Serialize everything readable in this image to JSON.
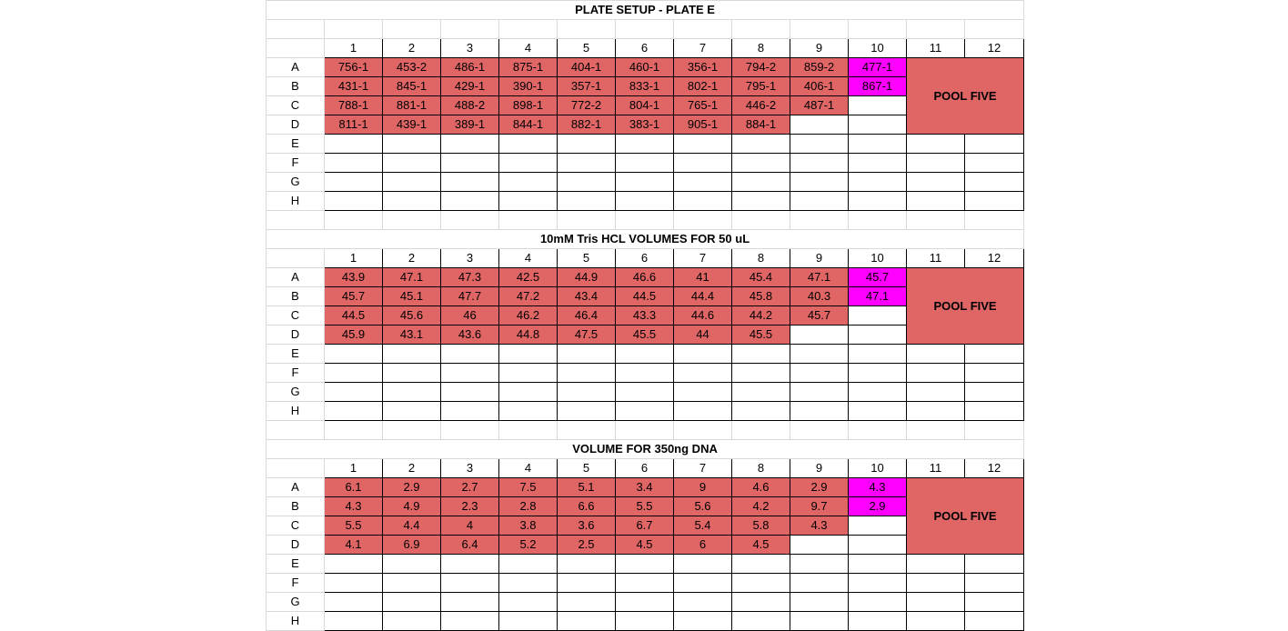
{
  "sections": [
    {
      "title": "PLATE SETUP - PLATE E",
      "columns": [
        "1",
        "2",
        "3",
        "4",
        "5",
        "6",
        "7",
        "8",
        "9",
        "10",
        "11",
        "12"
      ],
      "rows": [
        {
          "label": "A",
          "cells": [
            "756-1",
            "453-2",
            "486-1",
            "875-1",
            "404-1",
            "460-1",
            "356-1",
            "794-2",
            "859-2",
            "477-1"
          ]
        },
        {
          "label": "B",
          "cells": [
            "431-1",
            "845-1",
            "429-1",
            "390-1",
            "357-1",
            "833-1",
            "802-1",
            "795-1",
            "406-1",
            "867-1"
          ]
        },
        {
          "label": "C",
          "cells": [
            "788-1",
            "881-1",
            "488-2",
            "898-1",
            "772-2",
            "804-1",
            "765-1",
            "446-2",
            "487-1",
            ""
          ]
        },
        {
          "label": "D",
          "cells": [
            "811-1",
            "439-1",
            "389-1",
            "844-1",
            "882-1",
            "383-1",
            "905-1",
            "884-1",
            "",
            ""
          ]
        },
        {
          "label": "E",
          "cells": []
        },
        {
          "label": "F",
          "cells": []
        },
        {
          "label": "G",
          "cells": []
        },
        {
          "label": "H",
          "cells": []
        }
      ],
      "pool_label": "POOL FIVE"
    },
    {
      "title": "10mM Tris HCL VOLUMES FOR 50 uL",
      "columns": [
        "1",
        "2",
        "3",
        "4",
        "5",
        "6",
        "7",
        "8",
        "9",
        "10",
        "11",
        "12"
      ],
      "rows": [
        {
          "label": "A",
          "cells": [
            "43.9",
            "47.1",
            "47.3",
            "42.5",
            "44.9",
            "46.6",
            "41",
            "45.4",
            "47.1",
            "45.7"
          ]
        },
        {
          "label": "B",
          "cells": [
            "45.7",
            "45.1",
            "47.7",
            "47.2",
            "43.4",
            "44.5",
            "44.4",
            "45.8",
            "40.3",
            "47.1"
          ]
        },
        {
          "label": "C",
          "cells": [
            "44.5",
            "45.6",
            "46",
            "46.2",
            "46.4",
            "43.3",
            "44.6",
            "44.2",
            "45.7",
            ""
          ]
        },
        {
          "label": "D",
          "cells": [
            "45.9",
            "43.1",
            "43.6",
            "44.8",
            "47.5",
            "45.5",
            "44",
            "45.5",
            "",
            ""
          ]
        },
        {
          "label": "E",
          "cells": []
        },
        {
          "label": "F",
          "cells": []
        },
        {
          "label": "G",
          "cells": []
        },
        {
          "label": "H",
          "cells": []
        }
      ],
      "pool_label": "POOL FIVE"
    },
    {
      "title": "VOLUME FOR 350ng DNA",
      "columns": [
        "1",
        "2",
        "3",
        "4",
        "5",
        "6",
        "7",
        "8",
        "9",
        "10",
        "11",
        "12"
      ],
      "rows": [
        {
          "label": "A",
          "cells": [
            "6.1",
            "2.9",
            "2.7",
            "7.5",
            "5.1",
            "3.4",
            "9",
            "4.6",
            "2.9",
            "4.3"
          ]
        },
        {
          "label": "B",
          "cells": [
            "4.3",
            "4.9",
            "2.3",
            "2.8",
            "6.6",
            "5.5",
            "5.6",
            "4.2",
            "9.7",
            "2.9"
          ]
        },
        {
          "label": "C",
          "cells": [
            "5.5",
            "4.4",
            "4",
            "3.8",
            "3.6",
            "6.7",
            "5.4",
            "5.8",
            "4.3",
            ""
          ]
        },
        {
          "label": "D",
          "cells": [
            "4.1",
            "6.9",
            "6.4",
            "5.2",
            "2.5",
            "4.5",
            "6",
            "4.5",
            "",
            ""
          ]
        },
        {
          "label": "E",
          "cells": []
        },
        {
          "label": "F",
          "cells": []
        },
        {
          "label": "G",
          "cells": []
        },
        {
          "label": "H",
          "cells": []
        }
      ],
      "pool_label": "POOL FIVE"
    }
  ],
  "colors": {
    "sample": "#e06666",
    "highlight": "#ff00ff",
    "pool": "#e06666"
  }
}
